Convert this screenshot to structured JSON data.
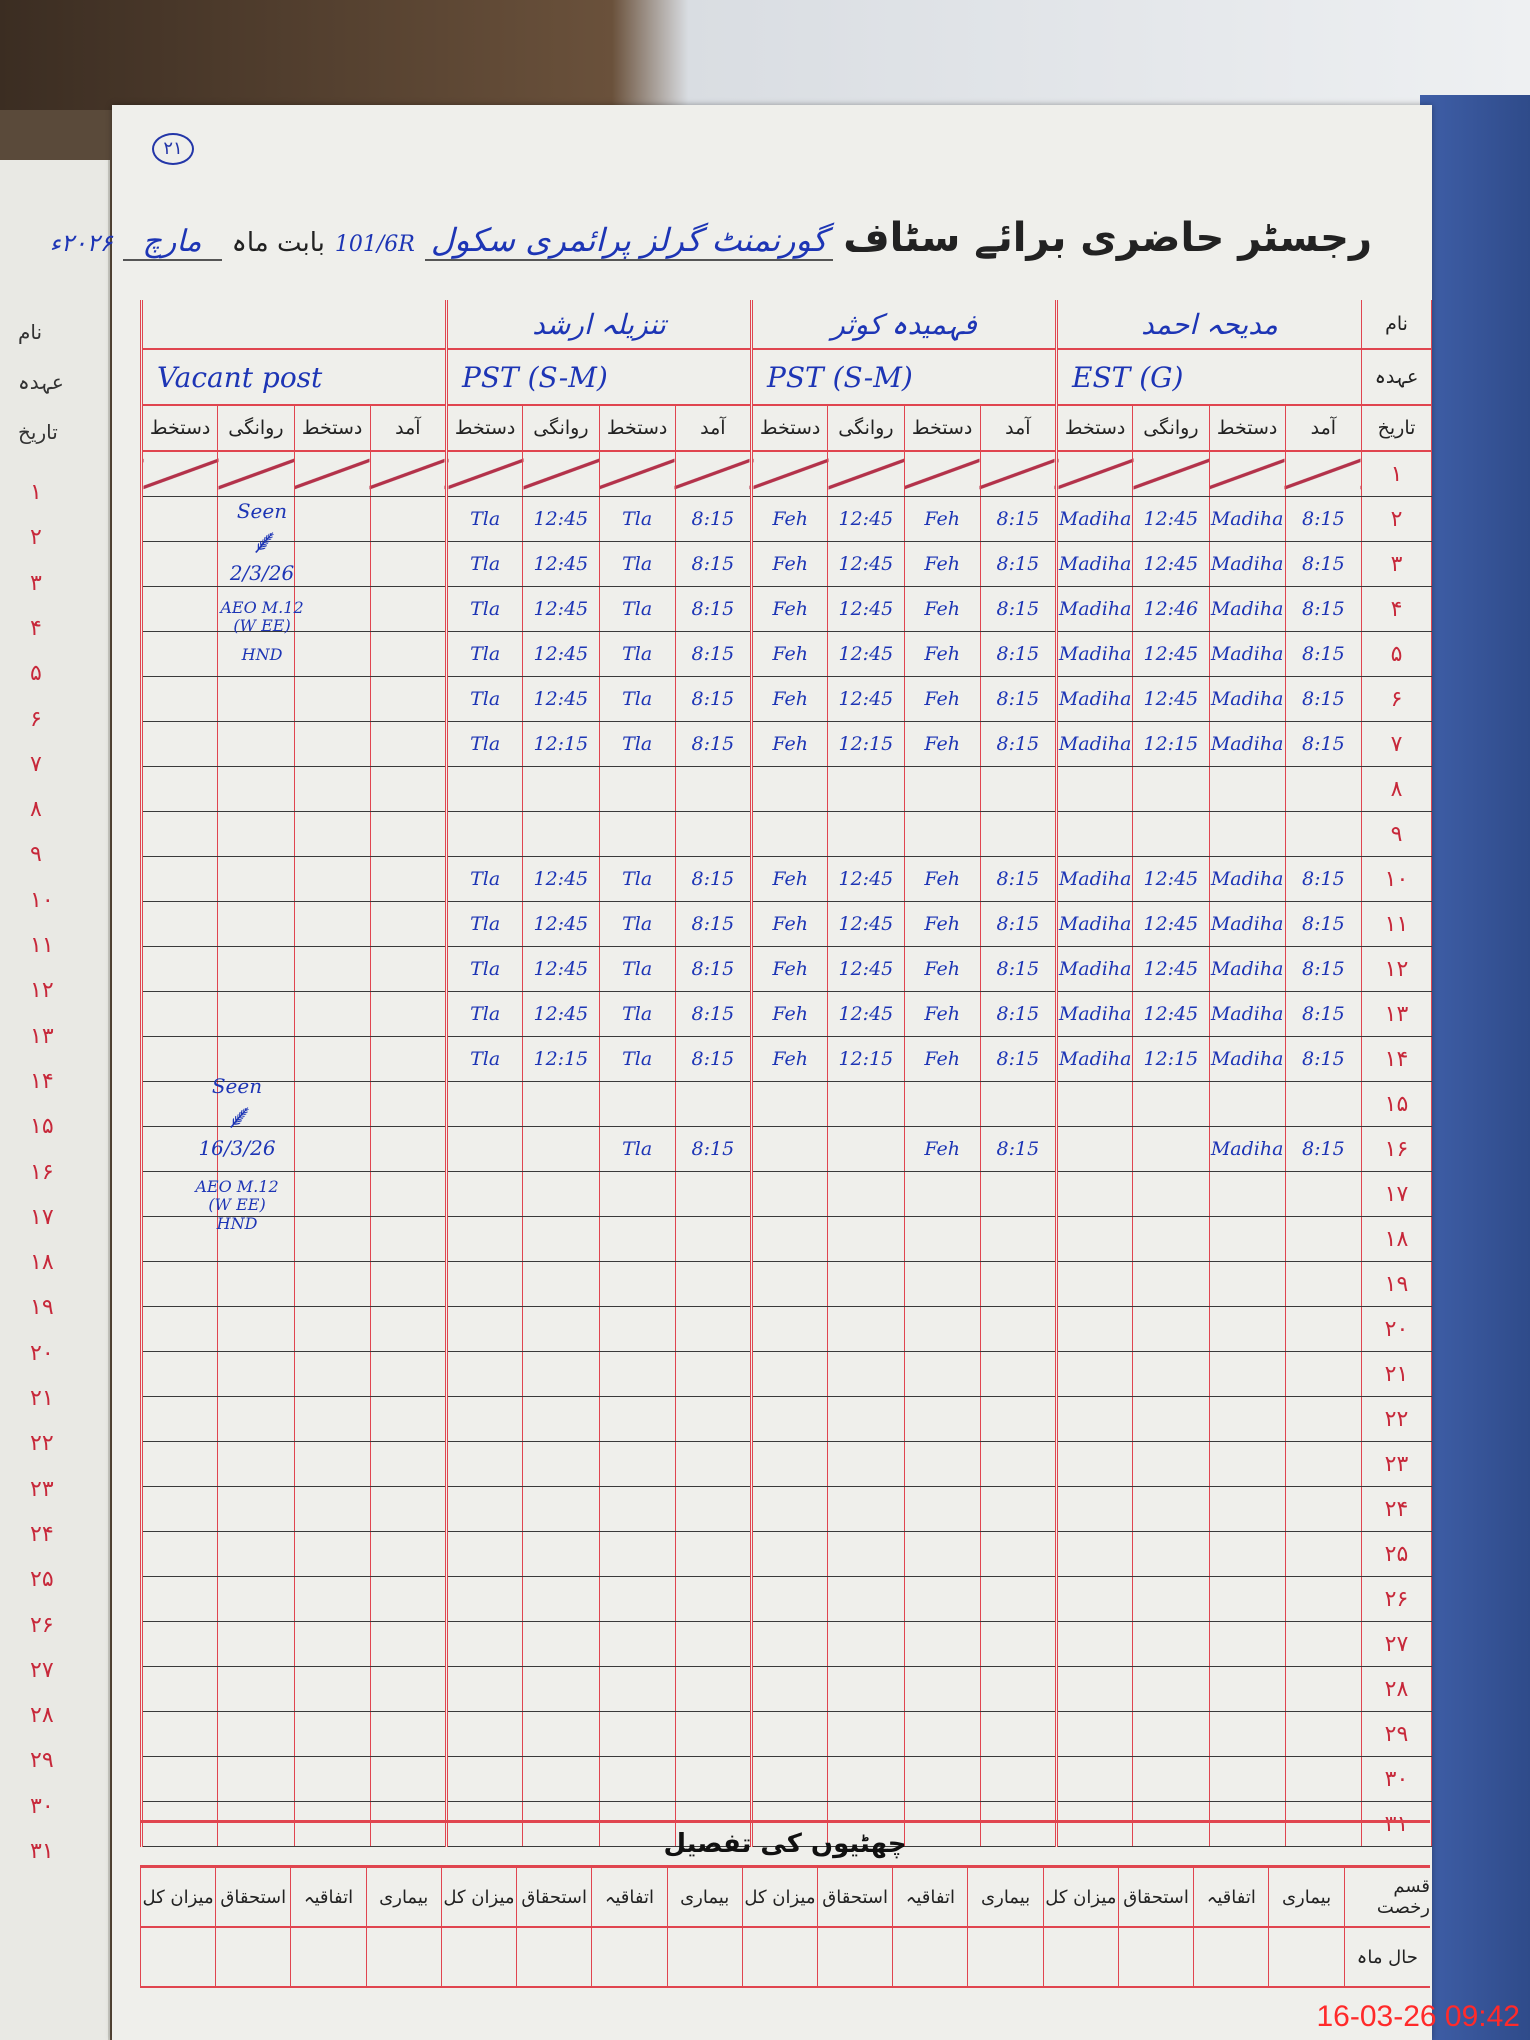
{
  "page_number": "۲۱",
  "title": {
    "printed": "رجسٹر حاضری برائے سٹاف",
    "school": "گورنمنٹ گرلز پرائمری سکول",
    "school_code": "101/6R",
    "month_label": "بابت ماہ",
    "month": "مارچ",
    "year": "۲۰۲۶ء"
  },
  "row_labels": {
    "name": "نام",
    "designation": "عہدہ",
    "date": "تاریخ"
  },
  "column_labels": {
    "arrival": "آمد",
    "signature": "دستخط",
    "departure": "روانگی"
  },
  "staff": [
    {
      "name": "مدیحہ احمد",
      "designation": "EST (G)"
    },
    {
      "name": "فہمیدہ کوثر",
      "designation": "PST (S-M)"
    },
    {
      "name": "تنزیلہ ارشد",
      "designation": "PST (S-M)"
    },
    {
      "name": "",
      "designation": "Vacant post"
    }
  ],
  "dates": [
    "۱",
    "۲",
    "۳",
    "۴",
    "۵",
    "۶",
    "۷",
    "۸",
    "۹",
    "۱۰",
    "۱۱",
    "۱۲",
    "۱۳",
    "۱۴",
    "۱۵",
    "۱۶",
    "۱۷",
    "۱۸",
    "۱۹",
    "۲۰",
    "۲۱",
    "۲۲",
    "۲۳",
    "۲۴",
    "۲۵",
    "۲۶",
    "۲۷",
    "۲۸",
    "۲۹",
    "۳۰",
    "۳۱"
  ],
  "struck_rows": [
    1
  ],
  "attendance": {
    "2": [
      [
        "8:15",
        "Madiha",
        "12:45",
        "Madiha"
      ],
      [
        "8:15",
        "Feh",
        "12:45",
        "Feh"
      ],
      [
        "8:15",
        "Tla",
        "12:45",
        "Tla"
      ]
    ],
    "3": [
      [
        "8:15",
        "Madiha",
        "12:45",
        "Madiha"
      ],
      [
        "8:15",
        "Feh",
        "12:45",
        "Feh"
      ],
      [
        "8:15",
        "Tla",
        "12:45",
        "Tla"
      ]
    ],
    "4": [
      [
        "8:15",
        "Madiha",
        "12:46",
        "Madiha"
      ],
      [
        "8:15",
        "Feh",
        "12:45",
        "Feh"
      ],
      [
        "8:15",
        "Tla",
        "12:45",
        "Tla"
      ]
    ],
    "5": [
      [
        "8:15",
        "Madiha",
        "12:45",
        "Madiha"
      ],
      [
        "8:15",
        "Feh",
        "12:45",
        "Feh"
      ],
      [
        "8:15",
        "Tla",
        "12:45",
        "Tla"
      ]
    ],
    "6": [
      [
        "8:15",
        "Madiha",
        "12:45",
        "Madiha"
      ],
      [
        "8:15",
        "Feh",
        "12:45",
        "Feh"
      ],
      [
        "8:15",
        "Tla",
        "12:45",
        "Tla"
      ]
    ],
    "7": [
      [
        "8:15",
        "Madiha",
        "12:15",
        "Madiha"
      ],
      [
        "8:15",
        "Feh",
        "12:15",
        "Feh"
      ],
      [
        "8:15",
        "Tla",
        "12:15",
        "Tla"
      ]
    ],
    "10": [
      [
        "8:15",
        "Madiha",
        "12:45",
        "Madiha"
      ],
      [
        "8:15",
        "Feh",
        "12:45",
        "Feh"
      ],
      [
        "8:15",
        "Tla",
        "12:45",
        "Tla"
      ]
    ],
    "11": [
      [
        "8:15",
        "Madiha",
        "12:45",
        "Madiha"
      ],
      [
        "8:15",
        "Feh",
        "12:45",
        "Feh"
      ],
      [
        "8:15",
        "Tla",
        "12:45",
        "Tla"
      ]
    ],
    "12": [
      [
        "8:15",
        "Madiha",
        "12:45",
        "Madiha"
      ],
      [
        "8:15",
        "Feh",
        "12:45",
        "Feh"
      ],
      [
        "8:15",
        "Tla",
        "12:45",
        "Tla"
      ]
    ],
    "13": [
      [
        "8:15",
        "Madiha",
        "12:45",
        "Madiha"
      ],
      [
        "8:15",
        "Feh",
        "12:45",
        "Feh"
      ],
      [
        "8:15",
        "Tla",
        "12:45",
        "Tla"
      ]
    ],
    "14": [
      [
        "8:15",
        "Madiha",
        "12:15",
        "Madiha"
      ],
      [
        "8:15",
        "Feh",
        "12:15",
        "Feh"
      ],
      [
        "8:15",
        "Tla",
        "12:15",
        "Tla"
      ]
    ],
    "16": [
      [
        "8:15",
        "Madiha",
        "",
        ""
      ],
      [
        "8:15",
        "Feh",
        "",
        ""
      ],
      [
        "8:15",
        "Tla",
        "",
        ""
      ]
    ]
  },
  "remarks": [
    {
      "seen": "Seen",
      "date": "2/3/26",
      "officer": "AEO M.12",
      "note": "(W EE)",
      "suffix": "HND"
    },
    {
      "seen": "Seen",
      "date": "16/3/26",
      "officer": "AEO M.12",
      "note": "(W EE)",
      "suffix": "HND"
    }
  ],
  "leave_section": {
    "title": "چھٹیوں کی تفصیل",
    "type_label": "قسم رخصت",
    "current_month_label": "حال ماہ",
    "columns": [
      "بیماری",
      "اتفاقیہ",
      "استحقاق",
      "میزان کل"
    ]
  },
  "timestamp": "16-03-26  09:42",
  "colors": {
    "ink": "#1d35b5",
    "rule": "#e0454f",
    "stamp": "#ff2a2a"
  }
}
